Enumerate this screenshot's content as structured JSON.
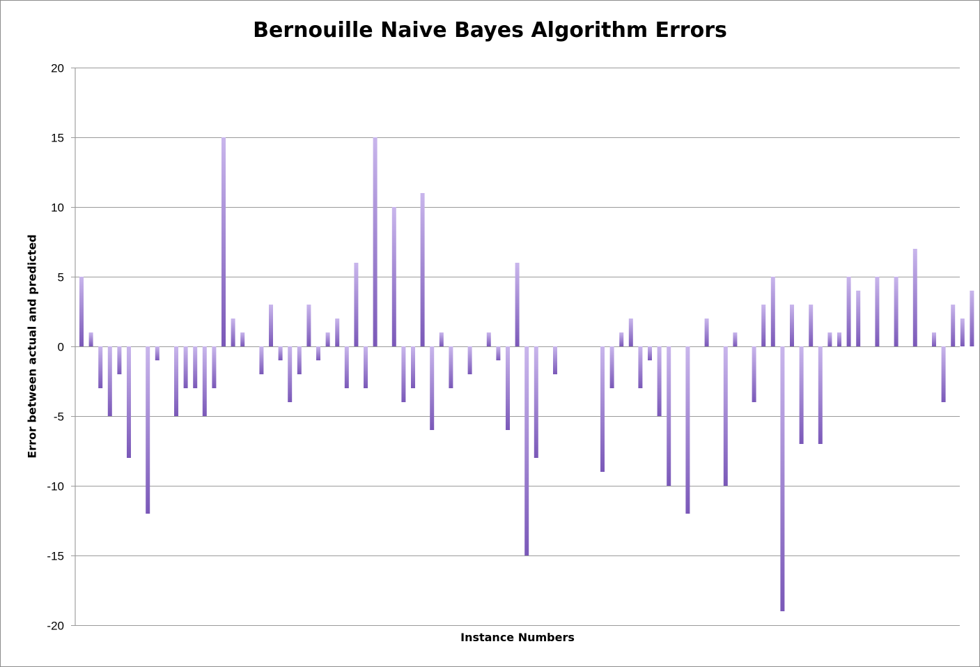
{
  "chart_data": {
    "type": "bar",
    "title": "Bernouille Naive Bayes Algorithm Errors",
    "xlabel": "Instance Numbers",
    "ylabel": "Error between actual and predicted",
    "ylim": [
      -20,
      20
    ],
    "yticks": [
      "20",
      "15",
      "10",
      "5",
      "0",
      "-5",
      "-10",
      "-15",
      "-20"
    ],
    "grid": true,
    "bar_color": "#8a6cc0",
    "series": [
      {
        "values": [
          5,
          1,
          -3,
          -5,
          -2,
          -8,
          0,
          -12,
          -1,
          0,
          -5,
          -3,
          -3,
          -5,
          -3,
          15,
          2,
          1,
          0,
          -2,
          3,
          -1,
          -4,
          -2,
          3,
          -1,
          1,
          2,
          -3,
          6,
          -3,
          15,
          0,
          10,
          -4,
          -3,
          11,
          -6,
          1,
          -3,
          0,
          -2,
          0,
          1,
          -1,
          -6,
          6,
          -15,
          -8,
          0,
          -2,
          0,
          0,
          0,
          0,
          -9,
          -3,
          1,
          2,
          -3,
          -1,
          -5,
          -10,
          0,
          -12,
          0,
          2,
          0,
          -10,
          1,
          0,
          -4,
          3,
          5,
          -19,
          3,
          -7,
          3,
          -7,
          1,
          1,
          5,
          4,
          0,
          5,
          0,
          5,
          0,
          7,
          0,
          1,
          -4,
          3,
          2,
          4
        ]
      }
    ]
  }
}
